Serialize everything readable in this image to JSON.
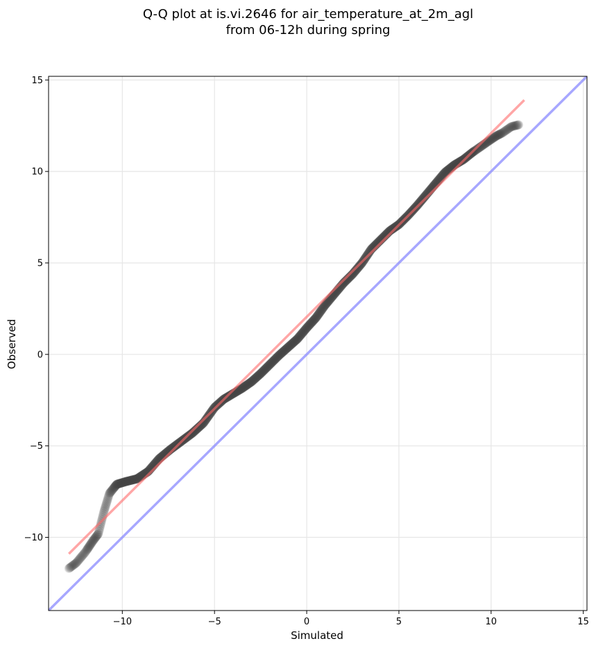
{
  "chart_data": {
    "type": "scatter",
    "title_line1": "Q-Q plot at is.vi.2646 for air_temperature_at_2m_agl",
    "title_line2": "from 06-12h during spring",
    "xlabel": "Simulated",
    "ylabel": "Observed",
    "xlim": [
      -14,
      15.2
    ],
    "ylim": [
      -14,
      15.2
    ],
    "xticks": [
      -10,
      -5,
      0,
      5,
      10,
      15
    ],
    "yticks": [
      -10,
      -5,
      0,
      5,
      10,
      15
    ],
    "xtick_labels": [
      "−10",
      "−5",
      "0",
      "5",
      "10",
      "15"
    ],
    "ytick_labels": [
      "−10",
      "−5",
      "0",
      "5",
      "10",
      "15"
    ],
    "grid": true,
    "colors": {
      "points": "#444444",
      "fit_line": "#ff6b6b",
      "identity_line": "#8a8aff",
      "grid": "#e6e6e6"
    },
    "fit_line": {
      "x": [
        -12.9,
        11.8
      ],
      "y": [
        -10.9,
        13.9
      ]
    },
    "identity_line": {
      "x": [
        -14,
        15.2
      ],
      "y": [
        -14,
        15.2
      ]
    },
    "quantile_curve": {
      "x": [
        -12.9,
        -12.5,
        -12.0,
        -11.6,
        -11.3,
        -11.0,
        -10.7,
        -10.3,
        -9.8,
        -9.2,
        -8.6,
        -8.0,
        -7.4,
        -6.8,
        -6.2,
        -5.6,
        -5.0,
        -4.5,
        -4.0,
        -3.5,
        -3.0,
        -2.5,
        -2.0,
        -1.5,
        -1.0,
        -0.5,
        0.0,
        0.5,
        1.0,
        1.5,
        2.0,
        2.5,
        3.0,
        3.5,
        4.0,
        4.5,
        5.0,
        5.5,
        6.0,
        6.5,
        7.0,
        7.5,
        8.0,
        8.5,
        9.0,
        9.5,
        10.0,
        10.3,
        10.6,
        11.1,
        11.5
      ],
      "y": [
        -11.7,
        -11.4,
        -10.8,
        -10.2,
        -9.8,
        -8.6,
        -7.6,
        -7.1,
        -6.95,
        -6.8,
        -6.4,
        -5.7,
        -5.2,
        -4.75,
        -4.3,
        -3.75,
        -2.9,
        -2.45,
        -2.15,
        -1.85,
        -1.5,
        -1.05,
        -0.55,
        -0.05,
        0.4,
        0.85,
        1.45,
        2.0,
        2.7,
        3.3,
        3.9,
        4.4,
        5.0,
        5.75,
        6.25,
        6.75,
        7.1,
        7.6,
        8.15,
        8.75,
        9.35,
        9.95,
        10.35,
        10.65,
        11.05,
        11.4,
        11.75,
        11.95,
        12.1,
        12.45,
        12.55
      ]
    }
  }
}
